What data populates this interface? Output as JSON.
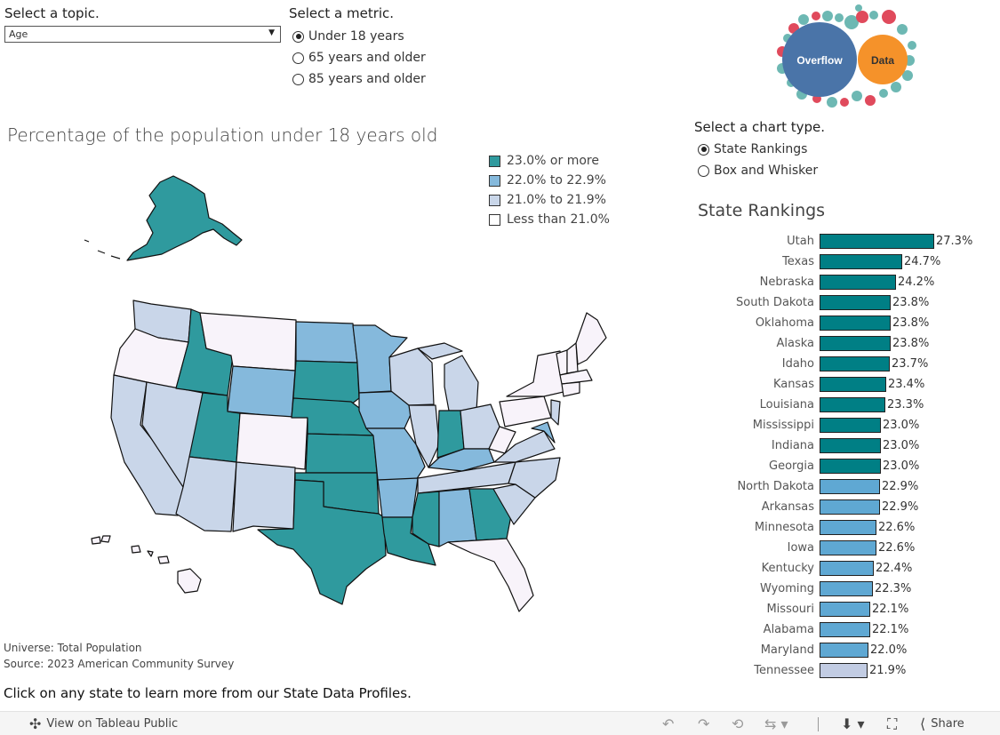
{
  "topic": {
    "title": "Select a topic.",
    "value": "Age"
  },
  "metric": {
    "title": "Select a metric.",
    "options": [
      "Under 18 years",
      "65 years and older",
      "85 years and older"
    ],
    "selected": 0
  },
  "map": {
    "title": "Percentage of the population under 18 years old",
    "legend": [
      {
        "label": "23.0% or more",
        "color": "#2f9a9e"
      },
      {
        "label": "22.0% to 22.9%",
        "color": "#85b9dc"
      },
      {
        "label": "21.0% to 21.9%",
        "color": "#c9d6e9"
      },
      {
        "label": "Less than 21.0%",
        "color": "#f8f3fa"
      }
    ]
  },
  "notes": {
    "universe": "Universe: Total Population",
    "source": "Source: 2023 American Community Survey",
    "cta": "Click on any state to learn more from our State Data Profiles."
  },
  "chart_type": {
    "title": "Select a chart type.",
    "options": [
      "State Rankings",
      "Box and Whisker"
    ],
    "selected": 0
  },
  "logo": {
    "word1": "Overflow",
    "word2": "Data"
  },
  "chart_data": {
    "type": "bar",
    "title": "State Rankings",
    "orientation": "horizontal",
    "categories": [
      "Utah",
      "Texas",
      "Nebraska",
      "South Dakota",
      "Oklahoma",
      "Alaska",
      "Idaho",
      "Kansas",
      "Louisiana",
      "Mississippi",
      "Indiana",
      "Georgia",
      "North Dakota",
      "Arkansas",
      "Minnesota",
      "Iowa",
      "Kentucky",
      "Wyoming",
      "Missouri",
      "Alabama",
      "Maryland",
      "Tennessee"
    ],
    "values": [
      27.3,
      24.7,
      24.2,
      23.8,
      23.8,
      23.8,
      23.7,
      23.4,
      23.3,
      23.0,
      23.0,
      23.0,
      22.9,
      22.9,
      22.6,
      22.6,
      22.4,
      22.3,
      22.1,
      22.1,
      22.0,
      21.9
    ],
    "labels": [
      "27.3%",
      "24.7%",
      "24.2%",
      "23.8%",
      "23.8%",
      "23.8%",
      "23.7%",
      "23.4%",
      "23.3%",
      "23.0%",
      "23.0%",
      "23.0%",
      "22.9%",
      "22.9%",
      "22.6%",
      "22.6%",
      "22.4%",
      "22.3%",
      "22.1%",
      "22.1%",
      "22.0%",
      "21.9%"
    ],
    "colors": {
      "high": "#007f85",
      "mid": "#5fa8d3",
      "low": "#c2cce3"
    }
  },
  "toolbar": {
    "view_label": "View on Tableau Public",
    "share_label": "Share",
    "icons": [
      "tableau-icon",
      "undo-icon",
      "redo-icon",
      "revert-icon",
      "refresh-icon",
      "download-icon",
      "fullscreen-icon",
      "share-icon"
    ]
  }
}
